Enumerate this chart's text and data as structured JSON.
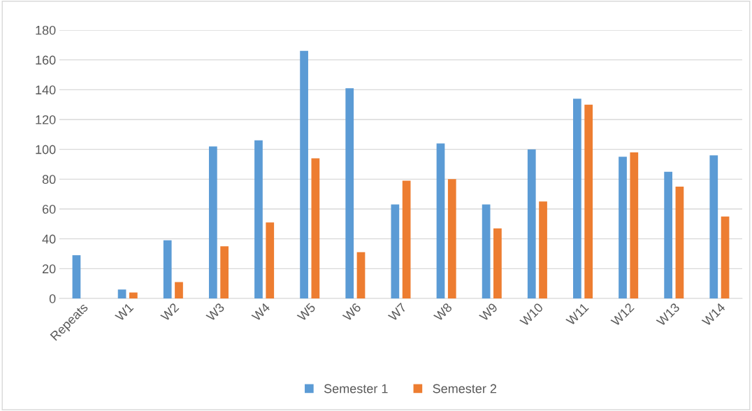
{
  "chart_data": {
    "type": "bar",
    "categories": [
      "Repeats",
      "W1",
      "W2",
      "W3",
      "W4",
      "W5",
      "W6",
      "W7",
      "W8",
      "W9",
      "W10",
      "W11",
      "W12",
      "W13",
      "W14"
    ],
    "series": [
      {
        "name": "Semester 1",
        "color": "#5b9bd5",
        "values": [
          29,
          6,
          39,
          102,
          106,
          166,
          141,
          63,
          104,
          63,
          100,
          134,
          95,
          85,
          96
        ]
      },
      {
        "name": "Semester 2",
        "color": "#ed7d31",
        "values": [
          0,
          4,
          11,
          35,
          51,
          94,
          31,
          79,
          80,
          47,
          65,
          130,
          98,
          75,
          55
        ]
      }
    ],
    "ylim": [
      0,
      180
    ],
    "yticks": [
      0,
      20,
      40,
      60,
      80,
      100,
      120,
      140,
      160,
      180
    ],
    "grid": "y",
    "legend": "bottom"
  }
}
